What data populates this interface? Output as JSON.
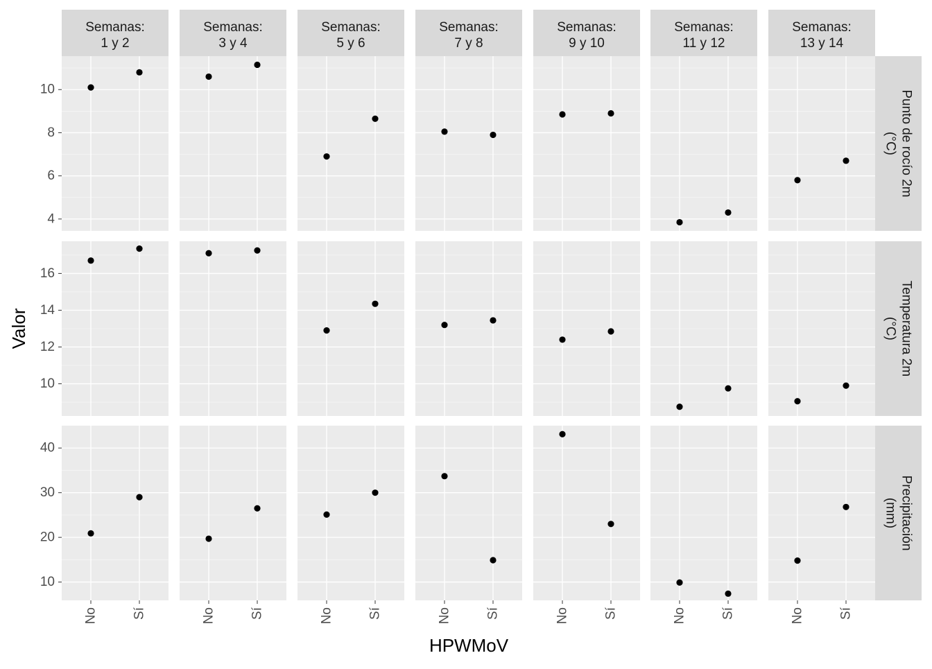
{
  "chart_data": {
    "type": "scatter",
    "xlabel": "HPWMoV",
    "ylabel": "Valor",
    "x_categories": [
      "No",
      "Sí"
    ],
    "facet_columns": [
      {
        "line1": "Semanas:",
        "line2": "1 y 2"
      },
      {
        "line1": "Semanas:",
        "line2": "3 y 4"
      },
      {
        "line1": "Semanas:",
        "line2": "5 y 6"
      },
      {
        "line1": "Semanas:",
        "line2": "7 y 8"
      },
      {
        "line1": "Semanas:",
        "line2": "9 y 10"
      },
      {
        "line1": "Semanas:",
        "line2": "11 y 12"
      },
      {
        "line1": "Semanas:",
        "line2": "13 y 14"
      }
    ],
    "facet_rows": [
      {
        "label_lines": [
          "Punto de rocío 2m",
          "(°C)"
        ],
        "ylim": [
          3.45,
          11.55
        ],
        "yticks": [
          4,
          6,
          8,
          10
        ],
        "values": [
          [
            10.1,
            10.8
          ],
          [
            10.6,
            11.15
          ],
          [
            6.9,
            8.65
          ],
          [
            8.05,
            7.9
          ],
          [
            8.85,
            8.9
          ],
          [
            3.85,
            4.3
          ],
          [
            5.8,
            6.7
          ]
        ]
      },
      {
        "label_lines": [
          "Temperatura 2m",
          "(°C)"
        ],
        "ylim": [
          8.25,
          17.75
        ],
        "yticks": [
          10,
          12,
          14,
          16
        ],
        "values": [
          [
            16.7,
            17.35
          ],
          [
            17.1,
            17.25
          ],
          [
            12.9,
            14.35
          ],
          [
            13.2,
            13.45
          ],
          [
            12.4,
            12.85
          ],
          [
            8.75,
            9.75
          ],
          [
            9.05,
            9.9
          ]
        ]
      },
      {
        "label_lines": [
          "Precipitación",
          "(mm)"
        ],
        "ylim": [
          5.9,
          45.0
        ],
        "yticks": [
          10,
          20,
          30,
          40
        ],
        "values": [
          [
            20.9,
            29.0
          ],
          [
            19.7,
            26.5
          ],
          [
            25.1,
            30.0
          ],
          [
            33.7,
            14.9
          ],
          [
            43.1,
            23.0
          ],
          [
            9.9,
            7.4
          ],
          [
            14.8,
            26.8
          ]
        ]
      }
    ],
    "colors": {
      "panel_bg": "#ebebeb",
      "strip_bg": "#d9d9d9",
      "grid_major": "#ffffff",
      "point": "#000000",
      "tick_text": "#4d4d4d",
      "strip_text": "#1a1a1a",
      "axis_title": "#000000"
    }
  }
}
